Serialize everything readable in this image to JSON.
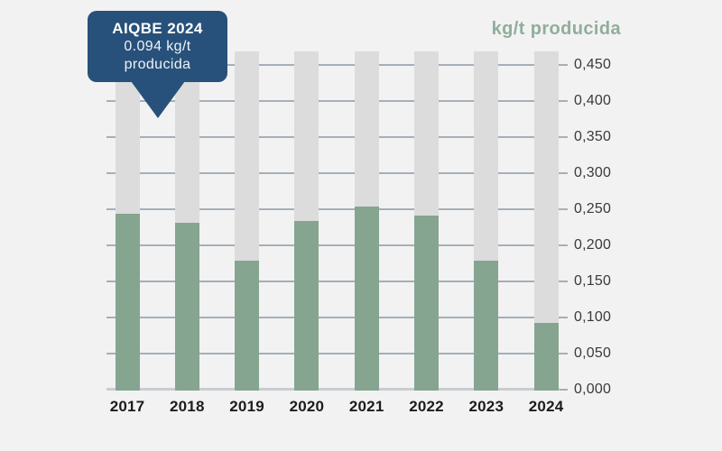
{
  "chart_data": {
    "type": "bar",
    "title": "kg/t producida",
    "categories": [
      "2017",
      "2018",
      "2019",
      "2020",
      "2021",
      "2022",
      "2023",
      "2024"
    ],
    "values": [
      0.245,
      0.232,
      0.18,
      0.235,
      0.255,
      0.242,
      0.18,
      0.094
    ],
    "series": [
      {
        "name": "kg/t producida",
        "values": [
          0.245,
          0.232,
          0.18,
          0.235,
          0.255,
          0.242,
          0.18,
          0.094
        ]
      }
    ],
    "xlabel": "",
    "ylabel": "",
    "ylim": [
      0,
      0.47
    ],
    "grid": true,
    "legend_position": "none",
    "decimal_separator": ",",
    "background_columns_to_max": true,
    "yticks": [
      {
        "value": 0.0,
        "label": "0,000"
      },
      {
        "value": 0.05,
        "label": "0,050"
      },
      {
        "value": 0.1,
        "label": "0,100"
      },
      {
        "value": 0.15,
        "label": "0,150"
      },
      {
        "value": 0.2,
        "label": "0,200"
      },
      {
        "value": 0.25,
        "label": "0,250"
      },
      {
        "value": 0.3,
        "label": "0,300"
      },
      {
        "value": 0.35,
        "label": "0,350"
      },
      {
        "value": 0.4,
        "label": "0,400"
      },
      {
        "value": 0.45,
        "label": "0,450"
      }
    ]
  },
  "callout": {
    "line1": "AIQBE 2024",
    "line2": "0.094 kg/t",
    "line3": "producida"
  },
  "colors": {
    "bar_green": "#85a591",
    "bar_gray": "#dcdcdc",
    "callout_blue": "#27517a",
    "title_green": "#8fae9d",
    "gridline": "#a6afb9",
    "baseline": "#c9cdd1",
    "background": "#f2f2f2",
    "xlabel_text": "#1c1c1c",
    "ylabel_text": "#3a3a3a",
    "callout_text": "#ffffff"
  }
}
